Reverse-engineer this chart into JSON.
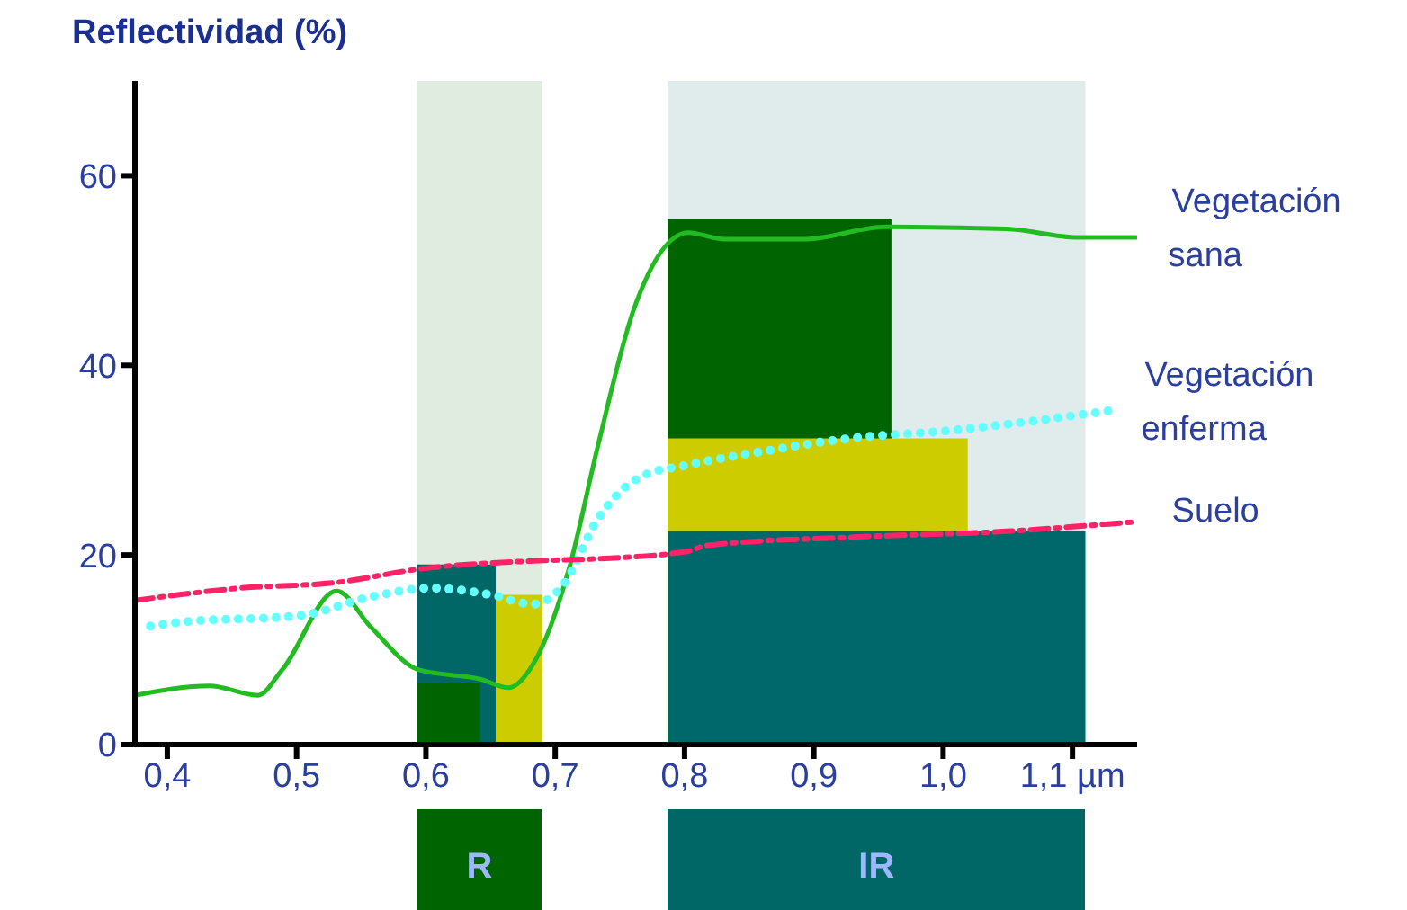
{
  "chart_data": {
    "type": "line",
    "ylabel": "Reflectividad (%)",
    "xlim": [
      0.375,
      1.15
    ],
    "xticks": [
      {
        "value": 0.4,
        "label": "0,4"
      },
      {
        "value": 0.5,
        "label": "0,5"
      },
      {
        "value": 0.6,
        "label": "0,6"
      },
      {
        "value": 0.7,
        "label": "0,7"
      },
      {
        "value": 0.8,
        "label": "0,8"
      },
      {
        "value": 0.9,
        "label": "0,9"
      },
      {
        "value": 1.0,
        "label": "1,0"
      },
      {
        "value": 1.1,
        "label": "1,1 µm"
      }
    ],
    "ylim": [
      0,
      70
    ],
    "yticks": [
      0,
      20,
      40,
      60
    ],
    "grid": false,
    "marker": "none",
    "bands": [
      {
        "axis": "x",
        "from": 0.593,
        "to": 0.69,
        "label": "R",
        "color": "#006400"
      },
      {
        "axis": "x",
        "from": 0.787,
        "to": 1.11,
        "label": "IR",
        "color": "#006666"
      }
    ],
    "series": [
      {
        "type": "area",
        "color": "#006666",
        "x": [
          0.593,
          0.654
        ],
        "values": [
          19,
          19
        ]
      },
      {
        "type": "area",
        "color": "#006400",
        "x": [
          0.593,
          0.642
        ],
        "values": [
          6.5,
          6.5
        ]
      },
      {
        "type": "area",
        "color": "#cccc00",
        "x": [
          0.654,
          0.69
        ],
        "values": [
          15.8,
          15.8
        ]
      },
      {
        "type": "area",
        "color": "#006400",
        "x": [
          0.787,
          0.96
        ],
        "values": [
          55.4,
          55.4
        ]
      },
      {
        "type": "area",
        "color": "#cccc00",
        "x": [
          0.787,
          1.019
        ],
        "values": [
          32.3,
          32.3
        ]
      },
      {
        "type": "area",
        "color": "#00686a",
        "x": [
          0.787,
          1.11
        ],
        "values": [
          22.5,
          22.5
        ]
      },
      {
        "name": "Vegetación sana",
        "color": "#22bb22",
        "line_style": "solid",
        "x": [
          0.375,
          0.433,
          0.47,
          0.489,
          0.531,
          0.558,
          0.594,
          0.642,
          0.664,
          0.683,
          0.711,
          0.733,
          0.761,
          0.803,
          0.831,
          0.892,
          0.956,
          1.049,
          1.104,
          1.149
        ],
        "values": [
          5.2,
          6.2,
          5.2,
          7.9,
          16.2,
          12.3,
          7.9,
          6.9,
          6,
          8.5,
          18.7,
          31.5,
          46,
          54,
          53.3,
          53.3,
          54.6,
          54.4,
          53.5,
          53.5
        ]
      },
      {
        "name": "Vegetación enferma",
        "color": "#66ffff",
        "line_style": "dotted",
        "x": [
          0.387,
          0.41,
          0.503,
          0.558,
          0.604,
          0.65,
          0.683,
          0.706,
          0.733,
          0.767,
          0.803,
          0.864,
          0.928,
          1.003,
          1.128
        ],
        "values": [
          12.5,
          12.9,
          13.6,
          15.6,
          16.5,
          15.8,
          14.8,
          16.8,
          23.8,
          28.3,
          29.5,
          31,
          32.3,
          33.1,
          35.2
        ]
      },
      {
        "name": "Suelo",
        "color": "#ff2266",
        "line_style": "dashed",
        "x": [
          0.375,
          0.456,
          0.531,
          0.594,
          0.688,
          0.733,
          0.803,
          0.817,
          0.933,
          1.049,
          1.149
        ],
        "values": [
          15.2,
          16.5,
          17.1,
          18.5,
          19.4,
          19.6,
          20.4,
          21,
          21.9,
          22.5,
          23.5
        ]
      }
    ]
  }
}
